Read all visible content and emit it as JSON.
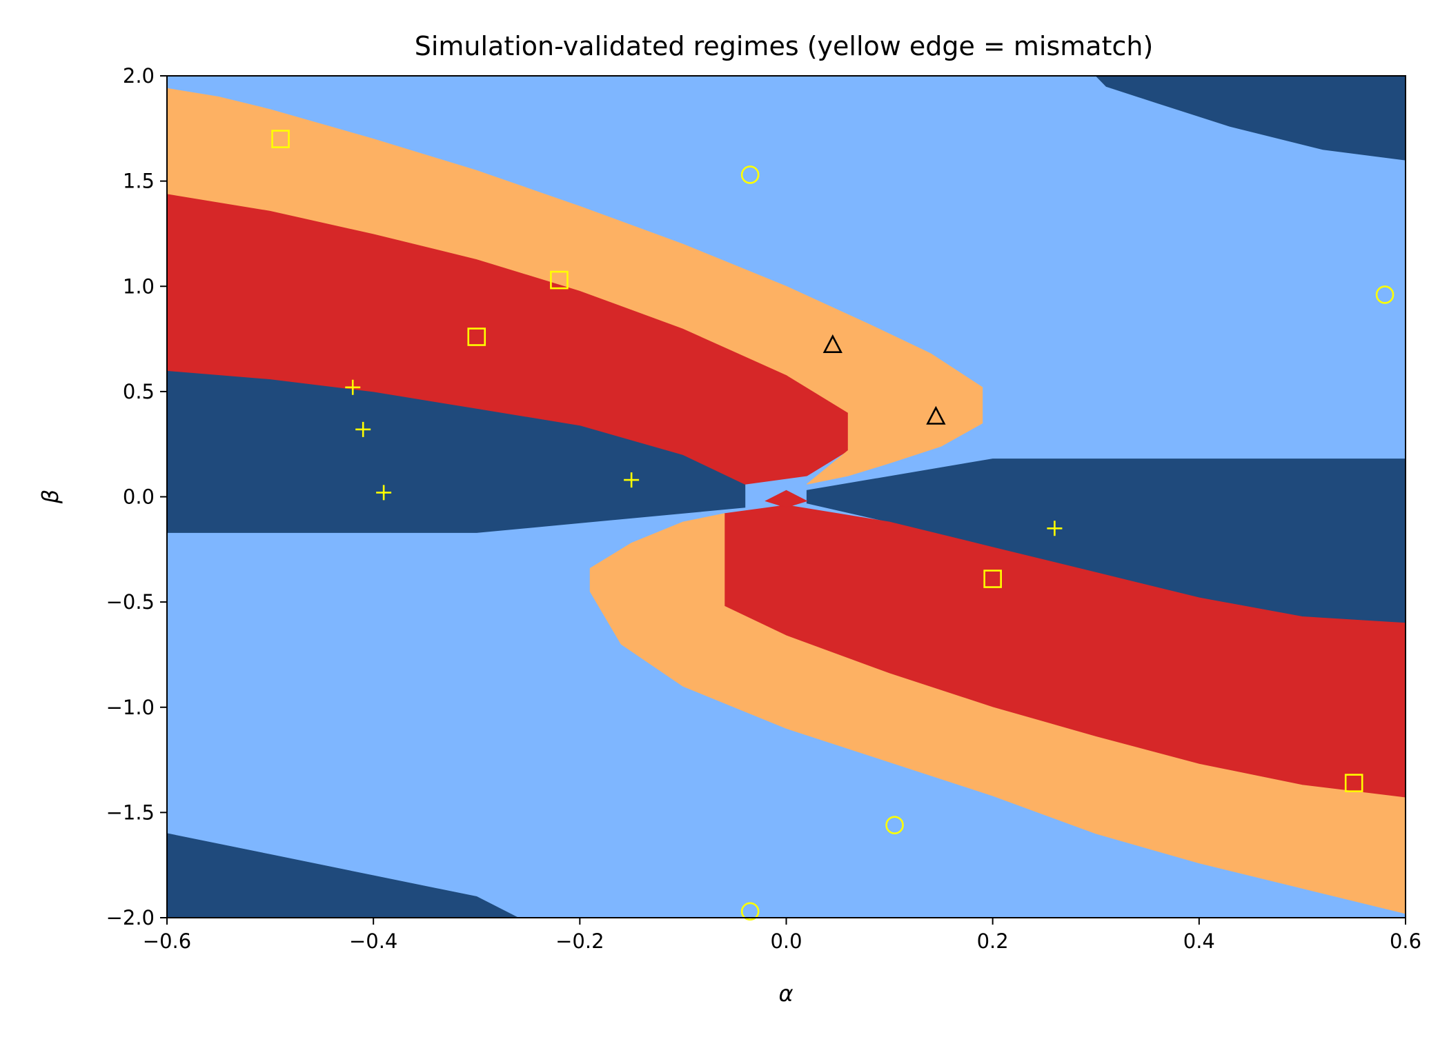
{
  "chart_data": {
    "type": "heatmap",
    "title": "Simulation-validated regimes  (yellow edge = mismatch)",
    "xlabel": "α",
    "ylabel": "β",
    "xlim": [
      -0.6,
      0.6
    ],
    "ylim": [
      -2.0,
      2.0
    ],
    "x_ticks": [
      -0.6,
      -0.4,
      -0.2,
      0.0,
      0.2,
      0.4,
      0.6
    ],
    "x_tick_labels": [
      "−0.6",
      "−0.4",
      "−0.2",
      "0.0",
      "0.2",
      "0.4",
      "0.6"
    ],
    "y_ticks": [
      2.0,
      1.5,
      1.0,
      0.5,
      0.0,
      -0.5,
      -1.0,
      -1.5,
      -2.0
    ],
    "y_tick_labels": [
      "2.0",
      "1.5",
      "1.0",
      "0.5",
      "0.0",
      "−0.5",
      "−1.0",
      "−1.5",
      "−2.0"
    ],
    "grid": false,
    "regime_colors": {
      "background": "#7eb6ff",
      "dark": "#1f4a7c",
      "red": "#d62728",
      "orange": "#fdb163"
    },
    "regimes": [
      {
        "color": "#1f4a7c",
        "boundary": [
          [
            -0.6,
            0.6
          ],
          [
            -0.5,
            0.56
          ],
          [
            -0.4,
            0.5
          ],
          [
            -0.3,
            0.42
          ],
          [
            -0.2,
            0.34
          ],
          [
            -0.1,
            0.2
          ],
          [
            -0.04,
            0.06
          ],
          [
            -0.04,
            -0.05
          ],
          [
            -0.3,
            -0.17
          ],
          [
            -0.6,
            -0.17
          ]
        ]
      },
      {
        "color": "#1f4a7c",
        "boundary": [
          [
            0.02,
            0.03
          ],
          [
            0.2,
            0.18
          ],
          [
            0.4,
            0.18
          ],
          [
            0.6,
            0.18
          ],
          [
            0.6,
            -0.6
          ],
          [
            0.5,
            -0.57
          ],
          [
            0.4,
            -0.48
          ],
          [
            0.3,
            -0.36
          ],
          [
            0.2,
            -0.24
          ],
          [
            0.1,
            -0.12
          ],
          [
            0.02,
            -0.03
          ]
        ]
      },
      {
        "color": "#1f4a7c",
        "boundary": [
          [
            0.3,
            2.0
          ],
          [
            0.6,
            2.0
          ],
          [
            0.6,
            1.6
          ],
          [
            0.52,
            1.65
          ],
          [
            0.43,
            1.76
          ],
          [
            0.36,
            1.87
          ],
          [
            0.31,
            1.95
          ]
        ]
      },
      {
        "color": "#1f4a7c",
        "boundary": [
          [
            -0.6,
            -1.6
          ],
          [
            -0.5,
            -1.7
          ],
          [
            -0.4,
            -1.8
          ],
          [
            -0.3,
            -1.9
          ],
          [
            -0.26,
            -2.0
          ],
          [
            -0.6,
            -2.0
          ]
        ]
      },
      {
        "color": "#d62728",
        "boundary": [
          [
            -0.6,
            1.44
          ],
          [
            -0.5,
            1.36
          ],
          [
            -0.4,
            1.25
          ],
          [
            -0.3,
            1.13
          ],
          [
            -0.2,
            0.98
          ],
          [
            -0.1,
            0.8
          ],
          [
            0.0,
            0.58
          ],
          [
            0.06,
            0.4
          ],
          [
            0.06,
            0.22
          ],
          [
            0.02,
            0.1
          ],
          [
            -0.04,
            0.06
          ],
          [
            -0.1,
            0.2
          ],
          [
            -0.2,
            0.34
          ],
          [
            -0.3,
            0.42
          ],
          [
            -0.4,
            0.5
          ],
          [
            -0.5,
            0.56
          ],
          [
            -0.6,
            0.6
          ]
        ]
      },
      {
        "color": "#fdb163",
        "boundary": [
          [
            -0.6,
            1.94
          ],
          [
            -0.55,
            1.9
          ],
          [
            -0.5,
            1.84
          ],
          [
            -0.4,
            1.7
          ],
          [
            -0.3,
            1.55
          ],
          [
            -0.2,
            1.38
          ],
          [
            -0.1,
            1.2
          ],
          [
            0.0,
            1.0
          ],
          [
            0.08,
            0.82
          ],
          [
            0.14,
            0.68
          ],
          [
            0.19,
            0.52
          ],
          [
            0.19,
            0.35
          ],
          [
            0.15,
            0.24
          ],
          [
            0.1,
            0.16
          ],
          [
            0.06,
            0.1
          ],
          [
            0.02,
            0.06
          ],
          [
            0.06,
            0.22
          ],
          [
            0.06,
            0.4
          ],
          [
            0.0,
            0.58
          ],
          [
            -0.1,
            0.8
          ],
          [
            -0.2,
            0.98
          ],
          [
            -0.3,
            1.13
          ],
          [
            -0.4,
            1.25
          ],
          [
            -0.5,
            1.36
          ],
          [
            -0.6,
            1.44
          ]
        ]
      },
      {
        "color": "#d62728",
        "boundary": [
          [
            -0.06,
            -0.08
          ],
          [
            0.0,
            -0.04
          ],
          [
            0.1,
            -0.12
          ],
          [
            0.2,
            -0.24
          ],
          [
            0.3,
            -0.36
          ],
          [
            0.4,
            -0.48
          ],
          [
            0.5,
            -0.57
          ],
          [
            0.6,
            -0.6
          ],
          [
            0.6,
            -1.43
          ],
          [
            0.5,
            -1.37
          ],
          [
            0.4,
            -1.27
          ],
          [
            0.3,
            -1.14
          ],
          [
            0.2,
            -1.0
          ],
          [
            0.1,
            -0.84
          ],
          [
            0.0,
            -0.66
          ],
          [
            -0.06,
            -0.52
          ],
          [
            -0.06,
            -0.3
          ]
        ]
      },
      {
        "color": "#fdb163",
        "boundary": [
          [
            -0.06,
            -0.08
          ],
          [
            -0.06,
            -0.3
          ],
          [
            -0.06,
            -0.52
          ],
          [
            0.0,
            -0.66
          ],
          [
            0.1,
            -0.84
          ],
          [
            0.2,
            -1.0
          ],
          [
            0.3,
            -1.14
          ],
          [
            0.4,
            -1.27
          ],
          [
            0.5,
            -1.37
          ],
          [
            0.6,
            -1.43
          ],
          [
            0.6,
            -1.98
          ],
          [
            0.5,
            -1.86
          ],
          [
            0.4,
            -1.74
          ],
          [
            0.3,
            -1.6
          ],
          [
            0.2,
            -1.42
          ],
          [
            0.1,
            -1.26
          ],
          [
            0.0,
            -1.1
          ],
          [
            -0.1,
            -0.9
          ],
          [
            -0.16,
            -0.7
          ],
          [
            -0.19,
            -0.45
          ],
          [
            -0.19,
            -0.34
          ],
          [
            -0.15,
            -0.22
          ],
          [
            -0.1,
            -0.12
          ]
        ]
      },
      {
        "color": "#d62728",
        "boundary": [
          [
            -0.02,
            -0.02
          ],
          [
            0.0,
            0.03
          ],
          [
            0.02,
            -0.02
          ],
          [
            0.0,
            -0.05
          ]
        ]
      }
    ],
    "markers": [
      {
        "shape": "square",
        "x": -0.49,
        "y": 1.7,
        "color": "#ffff00"
      },
      {
        "shape": "square",
        "x": -0.22,
        "y": 1.03,
        "color": "#ffff00"
      },
      {
        "shape": "square",
        "x": -0.3,
        "y": 0.76,
        "color": "#ffff00"
      },
      {
        "shape": "square",
        "x": 0.2,
        "y": -0.39,
        "color": "#ffff00"
      },
      {
        "shape": "square",
        "x": 0.55,
        "y": -1.36,
        "color": "#ffff00"
      },
      {
        "shape": "circle",
        "x": -0.035,
        "y": 1.53,
        "color": "#ffff00"
      },
      {
        "shape": "circle",
        "x": 0.58,
        "y": 0.96,
        "color": "#ffff00"
      },
      {
        "shape": "circle",
        "x": 0.105,
        "y": -1.56,
        "color": "#ffff00"
      },
      {
        "shape": "circle",
        "x": -0.035,
        "y": -1.97,
        "color": "#ffff00"
      },
      {
        "shape": "plus",
        "x": -0.42,
        "y": 0.52,
        "color": "#ffff00"
      },
      {
        "shape": "plus",
        "x": -0.41,
        "y": 0.32,
        "color": "#ffff00"
      },
      {
        "shape": "plus",
        "x": -0.39,
        "y": 0.02,
        "color": "#ffff00"
      },
      {
        "shape": "plus",
        "x": -0.15,
        "y": 0.08,
        "color": "#ffff00"
      },
      {
        "shape": "plus",
        "x": 0.26,
        "y": -0.15,
        "color": "#ffff00"
      },
      {
        "shape": "triangle",
        "x": 0.045,
        "y": 0.72,
        "color": "#000000"
      },
      {
        "shape": "triangle",
        "x": 0.145,
        "y": 0.38,
        "color": "#000000"
      }
    ]
  }
}
